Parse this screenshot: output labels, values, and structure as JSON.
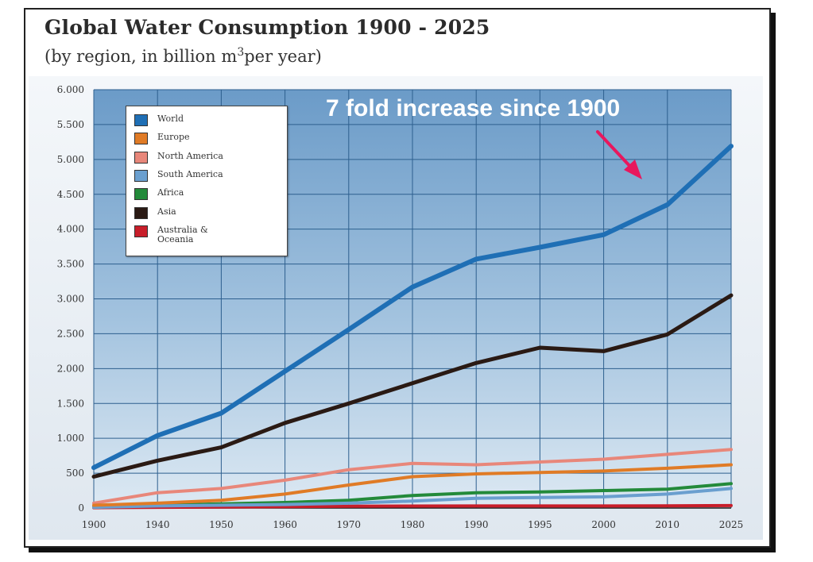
{
  "header": {
    "title": "Global Water Consumption 1900 - 2025",
    "subtitle_pre": "(by region, in billion m",
    "subtitle_sup": "3",
    "subtitle_post": "per year)"
  },
  "annotation": {
    "text": "7 fold increase since 1900",
    "arrow_color": "#e8175d"
  },
  "chart_data": {
    "type": "line",
    "title": "Global Water Consumption 1900 - 2025",
    "subtitle": "(by region, in billion m3 per year)",
    "xlabel": "",
    "ylabel": "",
    "x": [
      1900,
      1940,
      1950,
      1960,
      1970,
      1980,
      1990,
      1995,
      2000,
      2010,
      2025
    ],
    "x_tick_labels": [
      "1900",
      "1940",
      "1950",
      "1960",
      "1970",
      "1980",
      "1990",
      "1995",
      "2000",
      "2010",
      "2025"
    ],
    "y_ticks": [
      0,
      500,
      1000,
      1500,
      2000,
      2500,
      3000,
      3500,
      4000,
      4500,
      5000,
      5500,
      6000
    ],
    "y_tick_labels": [
      "0",
      "500",
      "1.000",
      "1.500",
      "2.000",
      "2.500",
      "3.000",
      "3.500",
      "4.000",
      "4.500",
      "5.000",
      "5.500",
      "6.000"
    ],
    "ylim": [
      0,
      6000
    ],
    "grid": true,
    "legend_position": "top-left",
    "annotations": [
      {
        "text": "7 fold increase since 1900",
        "points_to": {
          "x": 2010,
          "y": 4350
        }
      }
    ],
    "series": [
      {
        "name": "World",
        "color": "#1f6fb5",
        "values": [
          580,
          1040,
          1360,
          1960,
          2560,
          3170,
          3570,
          3740,
          3920,
          4350,
          5190
        ]
      },
      {
        "name": "Europe",
        "color": "#e07b26",
        "values": [
          40,
          70,
          110,
          200,
          330,
          450,
          490,
          510,
          530,
          570,
          620
        ]
      },
      {
        "name": "North America",
        "color": "#e8877a",
        "values": [
          70,
          220,
          280,
          400,
          550,
          640,
          620,
          660,
          700,
          770,
          840
        ]
      },
      {
        "name": "South America",
        "color": "#6a9fcf",
        "values": [
          10,
          30,
          40,
          50,
          70,
          100,
          140,
          150,
          160,
          200,
          280
        ]
      },
      {
        "name": "Africa",
        "color": "#238a3a",
        "values": [
          20,
          40,
          60,
          80,
          110,
          180,
          220,
          230,
          250,
          270,
          350
        ]
      },
      {
        "name": "Asia",
        "color": "#2a1a14",
        "values": [
          450,
          680,
          870,
          1220,
          1500,
          1790,
          2080,
          2300,
          2250,
          2490,
          3050
        ]
      },
      {
        "name": "Australia & Oceania",
        "color": "#c81e2a",
        "values": [
          5,
          10,
          15,
          20,
          25,
          28,
          30,
          30,
          30,
          32,
          35
        ]
      }
    ]
  }
}
